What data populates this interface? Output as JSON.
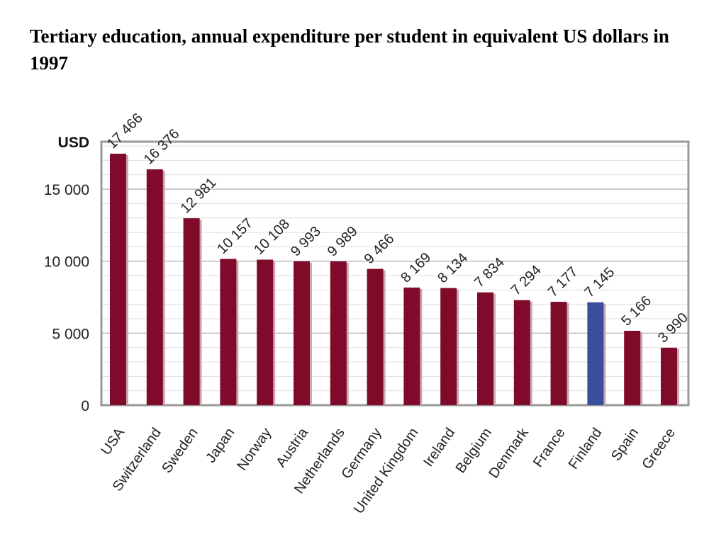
{
  "chart_data": {
    "type": "bar",
    "title": "Tertiary education, annual expenditure per student in equivalent US dollars in 1997",
    "ylabel": "USD",
    "xlabel": "",
    "ylim": [
      0,
      18300
    ],
    "yticks": [
      0,
      5000,
      10000,
      15000
    ],
    "ytick_labels": [
      "0",
      "5 000",
      "10 000",
      "15 000"
    ],
    "grid": true,
    "categories": [
      "USA",
      "Switzerland",
      "Sweden",
      "Japan",
      "Norway",
      "Austria",
      "Netherlands",
      "Germany",
      "United Kingdom",
      "Ireland",
      "Belgium",
      "Denmark",
      "France",
      "Finland",
      "Spain",
      "Greece"
    ],
    "values": [
      17466,
      16376,
      12981,
      10157,
      10108,
      9993,
      9989,
      9466,
      8169,
      8134,
      7834,
      7294,
      7177,
      7145,
      5166,
      3990
    ],
    "value_labels": [
      "17 466",
      "16 376",
      "12 981",
      "10 157",
      "10 108",
      "9 993",
      "9 989",
      "9 466",
      "8 169",
      "8 134",
      "7 834",
      "7 294",
      "7 177",
      "7 145",
      "5 166",
      "3 990"
    ],
    "colors": {
      "default_bar": "#7f0a2a",
      "highlight_bar": "#3a4f9c",
      "highlight_category": "Finland"
    }
  }
}
